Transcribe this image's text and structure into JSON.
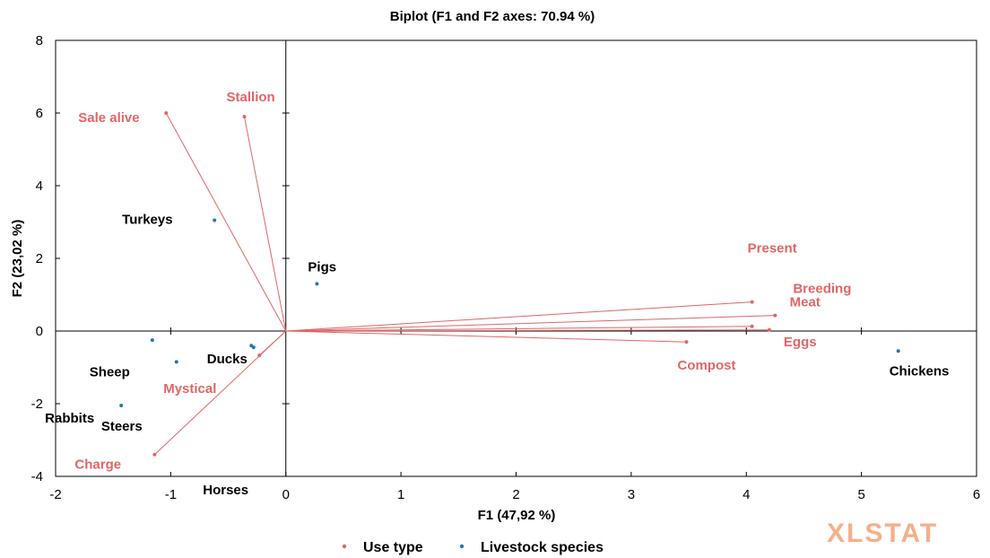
{
  "chart_data": {
    "type": "scatter",
    "title": "Biplot (F1 and F2 axes: 70.94 %)",
    "xlabel": "F1 (47,92 %)",
    "ylabel": "F2 (23,02 %)",
    "xlim": [
      -2,
      6
    ],
    "ylim": [
      -4,
      8
    ],
    "xticks": [
      "-2",
      "-1",
      "0",
      "1",
      "2",
      "3",
      "4",
      "5",
      "6"
    ],
    "yticks": [
      "-4",
      "-2",
      "0",
      "2",
      "4",
      "6",
      "8"
    ],
    "legend_position": "bottom",
    "series": [
      {
        "name": "Use type",
        "color": "#e06666",
        "style": "vectors",
        "points": [
          {
            "label": "Sale alive",
            "x": -1.04,
            "y": 6.0
          },
          {
            "label": "Stallion",
            "x": -0.36,
            "y": 5.9
          },
          {
            "label": "Present",
            "x": 4.05,
            "y": 0.8
          },
          {
            "label": "Breeding",
            "x": 4.25,
            "y": 0.43
          },
          {
            "label": "Meat",
            "x": 4.05,
            "y": 0.13
          },
          {
            "label": "Eggs",
            "x": 4.2,
            "y": 0.03
          },
          {
            "label": "Compost",
            "x": 3.48,
            "y": -0.3
          },
          {
            "label": "Mystical",
            "x": -0.23,
            "y": -0.67
          },
          {
            "label": "Charge",
            "x": -1.14,
            "y": -3.4
          }
        ]
      },
      {
        "name": "Livestock species",
        "color": "#1f77b4",
        "style": "points",
        "points": [
          {
            "label": "Turkeys",
            "x": -0.62,
            "y": 3.05
          },
          {
            "label": "Pigs",
            "x": 0.27,
            "y": 1.3
          },
          {
            "label": "Steers",
            "x": -1.16,
            "y": -0.25
          },
          {
            "label": "Sheep",
            "x": -0.95,
            "y": -0.85
          },
          {
            "label": "Rabbits",
            "x": -1.43,
            "y": -2.05
          },
          {
            "label": "Horses",
            "x": -0.3,
            "y": -0.4
          },
          {
            "label": "Ducks",
            "x": -0.28,
            "y": -0.45
          },
          {
            "label": "Chickens",
            "x": 5.32,
            "y": -0.55
          }
        ]
      }
    ]
  },
  "brand": "XLSTAT"
}
